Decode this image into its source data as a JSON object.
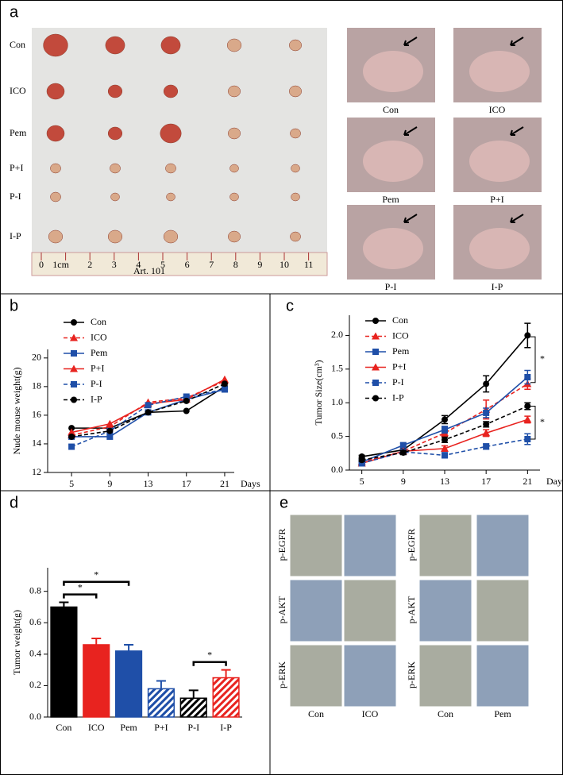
{
  "panel_labels": [
    "a",
    "b",
    "c",
    "d",
    "e"
  ],
  "panel_a": {
    "tumor_rows": [
      "Con",
      "ICO",
      "Pem",
      "P+I",
      "P-I",
      "I-P"
    ],
    "ruler_labels": [
      "0",
      "1cm",
      "2",
      "3",
      "4",
      "5",
      "6",
      "7",
      "8",
      "9",
      "10",
      "11"
    ],
    "ruler_brand": "Art. 101",
    "mouse_labels": [
      "Con",
      "ICO",
      "Pem",
      "P+I",
      "P-I",
      "I-P"
    ]
  },
  "chart_data": [
    {
      "type": "line",
      "y_label": "Nude mouse weight(g)",
      "x_label": "Days",
      "x": [
        5,
        9,
        13,
        17,
        21
      ],
      "xlim": [
        2.5,
        22
      ],
      "xticks": [
        5,
        9,
        13,
        17,
        21
      ],
      "ylim": [
        12,
        20.6
      ],
      "yticks": [
        12,
        14,
        16,
        18,
        20
      ],
      "series": [
        {
          "name": "Con",
          "color": "#000000",
          "marker": "circle",
          "dashed": false,
          "values": [
            15.1,
            15.1,
            16.2,
            16.3,
            18.0
          ]
        },
        {
          "name": "ICO",
          "color": "#e8231f",
          "marker": "triangle",
          "dashed": true,
          "values": [
            14.6,
            15.2,
            16.9,
            17.2,
            18.4
          ]
        },
        {
          "name": "Pem",
          "color": "#1f4fa8",
          "marker": "square",
          "dashed": false,
          "values": [
            14.5,
            14.5,
            16.2,
            17.1,
            17.8
          ]
        },
        {
          "name": "P+I",
          "color": "#e8231f",
          "marker": "triangle",
          "dashed": false,
          "values": [
            14.8,
            15.4,
            16.8,
            17.1,
            18.5
          ]
        },
        {
          "name": "P-I",
          "color": "#1f4fa8",
          "marker": "square",
          "dashed": true,
          "values": [
            13.8,
            14.9,
            16.7,
            17.3,
            17.8
          ]
        },
        {
          "name": "I-P",
          "color": "#000000",
          "marker": "circle",
          "dashed": true,
          "values": [
            14.5,
            14.9,
            16.2,
            17.0,
            18.2
          ]
        }
      ]
    },
    {
      "type": "line",
      "y_label": "Tumor Size(cm³)",
      "x_label": "Days",
      "x": [
        5,
        9,
        13,
        17,
        21
      ],
      "xlim": [
        3.8,
        22.2
      ],
      "xticks": [
        5,
        9,
        13,
        17,
        21
      ],
      "ylim": [
        0,
        2.3
      ],
      "yticks": [
        {
          "value": 0,
          "label": "0.0"
        },
        {
          "value": 0.5,
          "label": "0.5"
        },
        {
          "value": 1,
          "label": "1.0"
        },
        {
          "value": 1.5,
          "label": "1.5"
        },
        {
          "value": 2,
          "label": "2.0"
        }
      ],
      "annotations": [
        "*",
        "*"
      ],
      "series": [
        {
          "name": "Con",
          "color": "#000000",
          "marker": "circle",
          "dashed": false,
          "values": [
            0.2,
            0.3,
            0.75,
            1.28,
            2.0
          ],
          "errors": [
            0.02,
            0.03,
            0.06,
            0.12,
            0.18
          ]
        },
        {
          "name": "ICO",
          "color": "#e8231f",
          "marker": "triangle",
          "dashed": true,
          "values": [
            0.12,
            0.28,
            0.55,
            0.9,
            1.28
          ],
          "errors": [
            0.02,
            0.03,
            0.05,
            0.14,
            0.08
          ]
        },
        {
          "name": "Pem",
          "color": "#1f4fa8",
          "marker": "square",
          "dashed": false,
          "values": [
            0.12,
            0.37,
            0.6,
            0.85,
            1.38
          ],
          "errors": [
            0.02,
            0.03,
            0.05,
            0.07,
            0.1
          ]
        },
        {
          "name": "P+I",
          "color": "#e8231f",
          "marker": "triangle",
          "dashed": false,
          "values": [
            0.1,
            0.28,
            0.32,
            0.55,
            0.75
          ],
          "errors": [
            0.02,
            0.03,
            0.04,
            0.05,
            0.05
          ]
        },
        {
          "name": "P-I",
          "color": "#1f4fa8",
          "marker": "square",
          "dashed": true,
          "values": [
            0.1,
            0.27,
            0.22,
            0.35,
            0.46
          ],
          "errors": [
            0.02,
            0.03,
            0.04,
            0.04,
            0.08
          ]
        },
        {
          "name": "I-P",
          "color": "#000000",
          "marker": "circle",
          "dashed": true,
          "values": [
            0.15,
            0.26,
            0.45,
            0.68,
            0.95
          ],
          "errors": [
            0.02,
            0.03,
            0.04,
            0.04,
            0.05
          ]
        }
      ]
    },
    {
      "type": "bar",
      "y_label": "Tumor weight(g)",
      "categories": [
        "Con",
        "ICO",
        "Pem",
        "P+I",
        "P-I",
        "I-P"
      ],
      "values": [
        0.7,
        0.46,
        0.42,
        0.18,
        0.12,
        0.25
      ],
      "errors": [
        0.03,
        0.04,
        0.04,
        0.05,
        0.05,
        0.05
      ],
      "colors": [
        "#000000",
        "#e8231f",
        "#1f4fa8",
        "#1f4fa8",
        "#000000",
        "#e8231f"
      ],
      "hatched": [
        false,
        false,
        false,
        true,
        true,
        true
      ],
      "ylim": [
        0,
        0.95
      ],
      "yticks": [
        {
          "value": 0,
          "label": "0.0"
        },
        {
          "value": 0.2,
          "label": "0.2"
        },
        {
          "value": 0.4,
          "label": "0.4"
        },
        {
          "value": 0.6,
          "label": "0.6"
        },
        {
          "value": 0.8,
          "label": "0.8"
        }
      ],
      "annotations": [
        "*",
        "*",
        "*"
      ]
    }
  ],
  "panel_e": {
    "stains": [
      "p-EGFR",
      "p-AKT",
      "p-ERK"
    ],
    "groups": [
      [
        "Con",
        "ICO"
      ],
      [
        "Con",
        "Pem"
      ]
    ]
  }
}
